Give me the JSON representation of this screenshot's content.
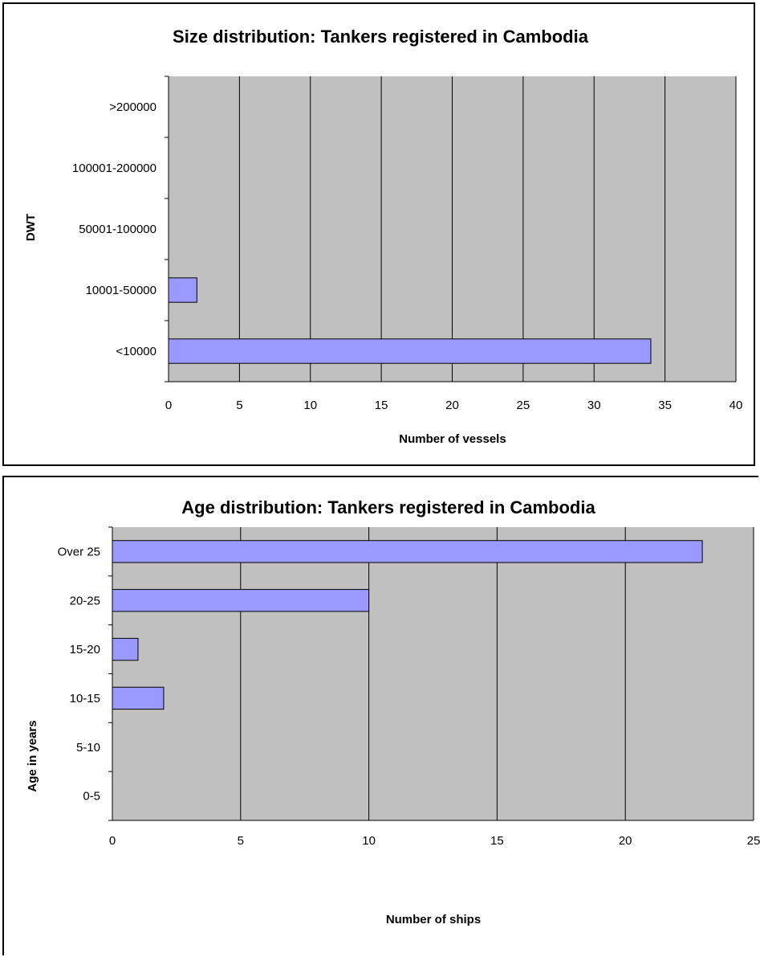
{
  "chart_data": [
    {
      "type": "bar",
      "orientation": "horizontal",
      "title": "Size distribution: Tankers registered in Cambodia",
      "xlabel": "Number of vessels",
      "ylabel": "DWT",
      "categories": [
        "<10000",
        "10001-50000",
        "50001-100000",
        "100001-200000",
        ">200000"
      ],
      "values": [
        34,
        2,
        0,
        0,
        0
      ],
      "xlim": [
        0,
        40
      ],
      "xticks": [
        "0",
        "5",
        "10",
        "15",
        "20",
        "25",
        "30",
        "35",
        "40"
      ],
      "grid": "vertical",
      "colors": {
        "bar": "#9999ff",
        "plot_bg": "#c0c0c0"
      }
    },
    {
      "type": "bar",
      "orientation": "horizontal",
      "title": "Age distribution: Tankers registered in Cambodia",
      "xlabel": "Number of ships",
      "ylabel": "Age in years",
      "categories": [
        "0-5",
        "5-10",
        "10-15",
        "15-20",
        "20-25",
        "Over 25"
      ],
      "values": [
        0,
        0,
        2,
        1,
        10,
        23
      ],
      "xlim": [
        0,
        25
      ],
      "xticks": [
        "0",
        "5",
        "10",
        "15",
        "20",
        "25"
      ],
      "grid": "vertical",
      "colors": {
        "bar": "#9999ff",
        "plot_bg": "#c0c0c0"
      }
    }
  ]
}
